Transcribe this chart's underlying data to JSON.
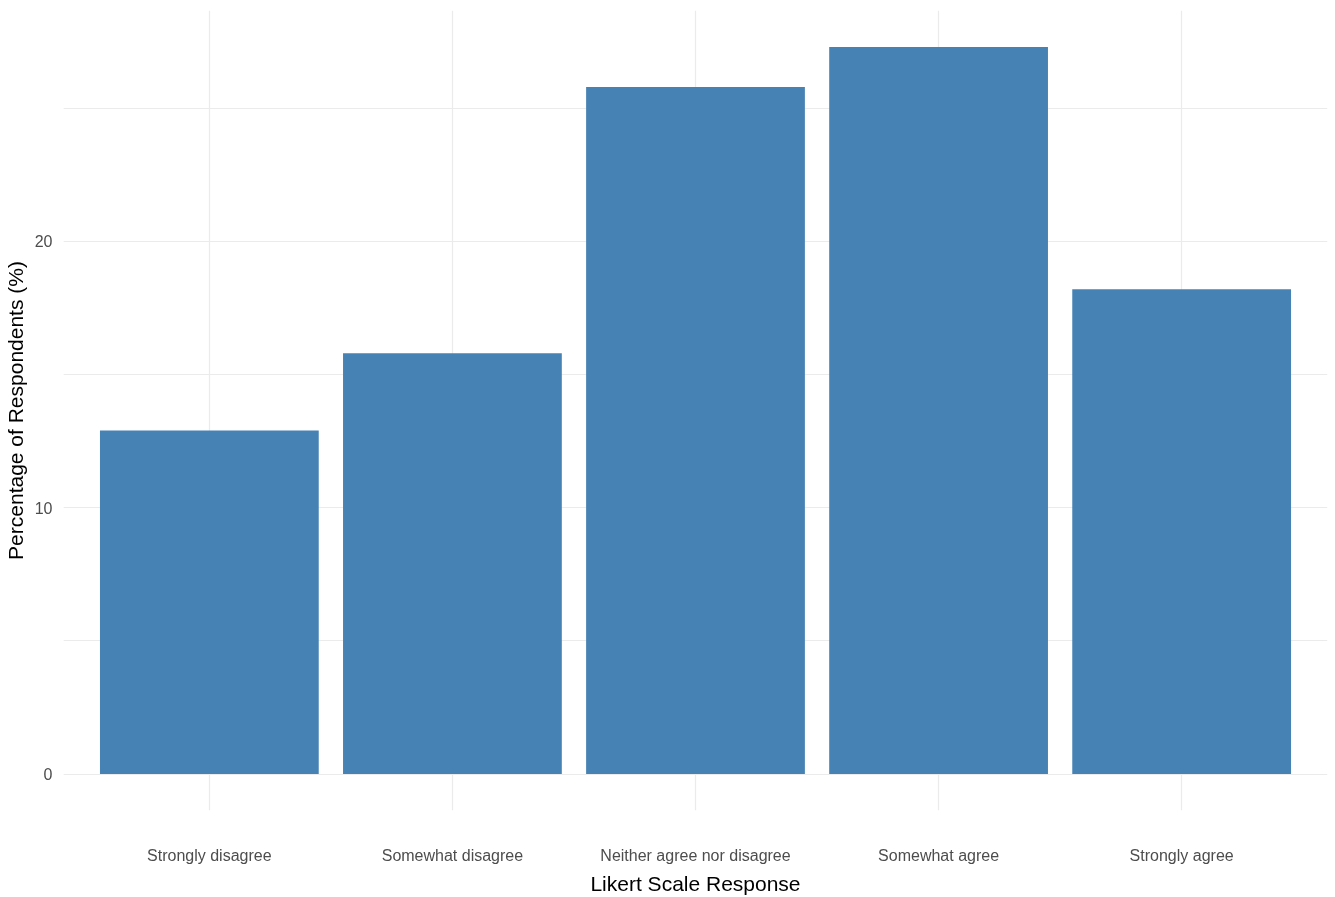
{
  "chart_data": {
    "type": "bar",
    "xlabel": "Likert Scale Response",
    "ylabel": "Percentage of Respondents (%)",
    "categories": [
      "Strongly disagree",
      "Somewhat disagree",
      "Neither agree nor disagree",
      "Somewhat agree",
      "Strongly agree"
    ],
    "values": [
      12.9,
      15.8,
      25.8,
      27.3,
      18.2
    ],
    "color": "#4682b4",
    "ylim": [
      -1.37,
      28.67
    ],
    "yticks": [
      0,
      {
        "value": 5,
        "label": null
      },
      10,
      {
        "value": 15,
        "label": null
      },
      20,
      {
        "value": 25,
        "label": null
      }
    ],
    "grid": true
  }
}
